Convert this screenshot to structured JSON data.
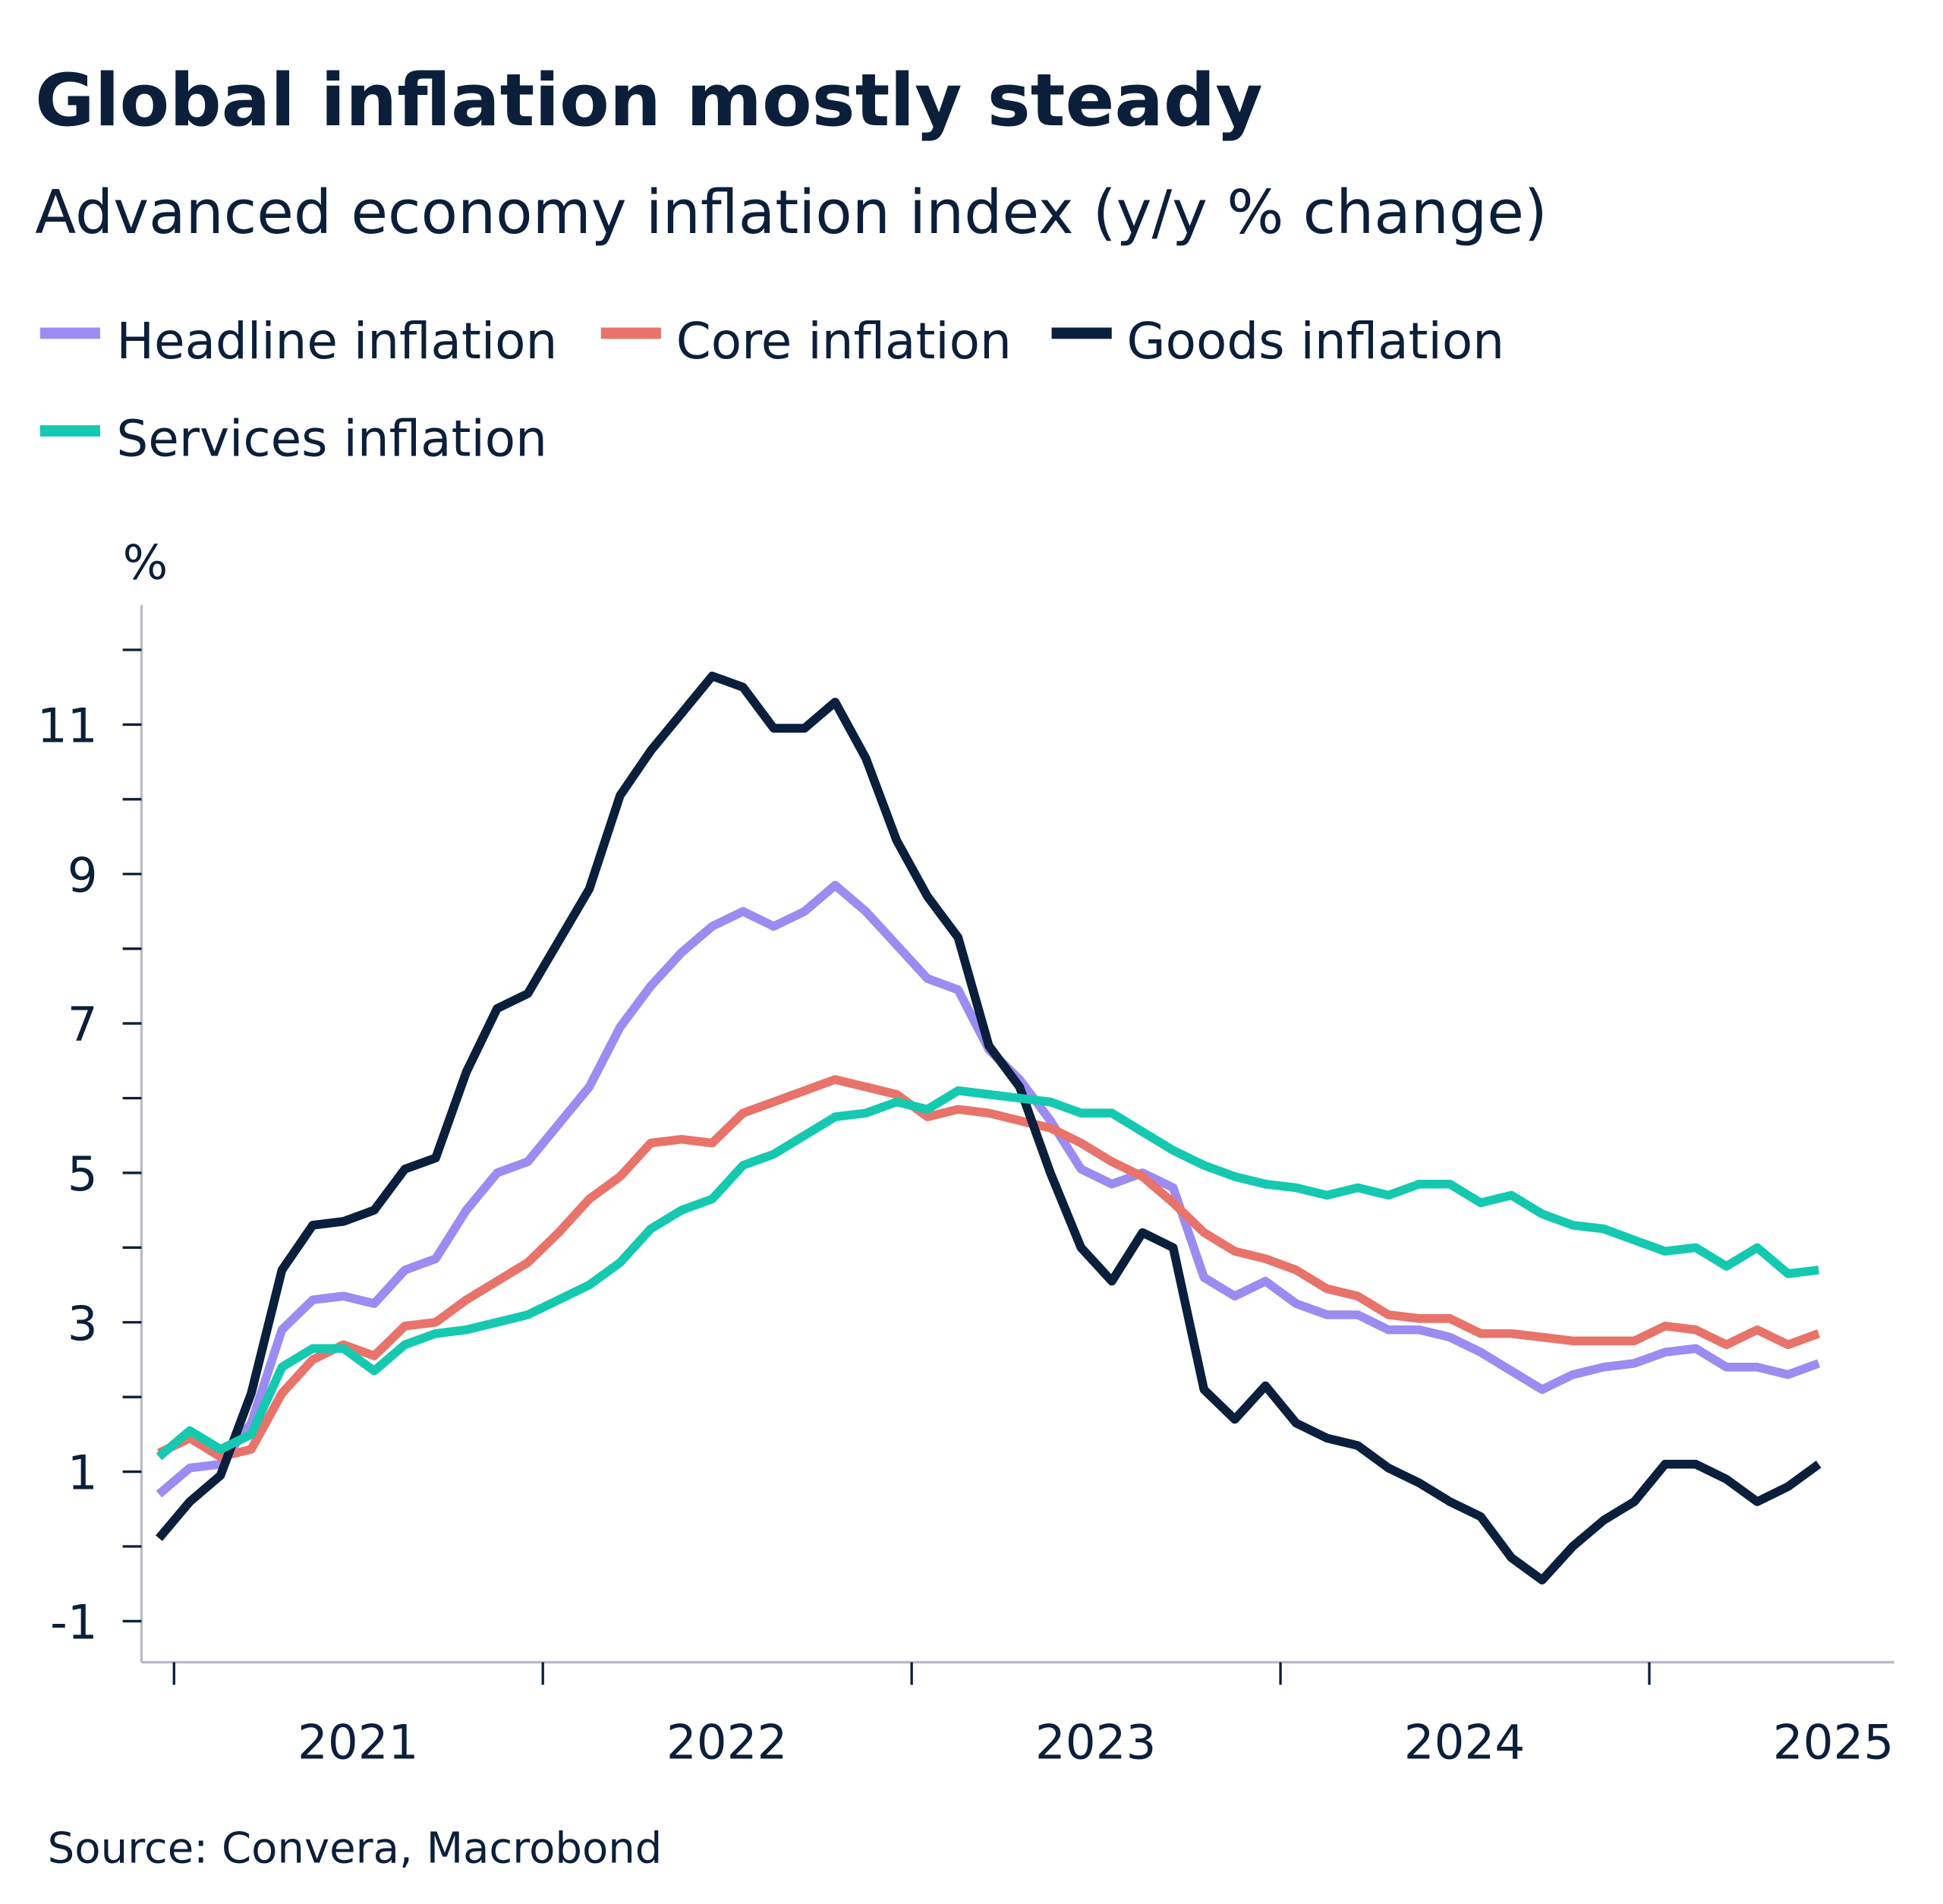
{
  "chart_data": {
    "type": "line",
    "title": "Global inflation mostly steady",
    "subtitle": "Advanced economy inflation index (y/y % change)",
    "ylabel": "%",
    "xlabel": "",
    "ylim": [
      -1.55,
      12.6
    ],
    "yticks": [
      -1,
      0,
      1,
      2,
      3,
      4,
      5,
      6,
      7,
      8,
      9,
      10,
      11,
      12
    ],
    "ytick_labels": [
      "-1",
      "1",
      "3",
      "5",
      "7",
      "9",
      "11"
    ],
    "ytick_label_values": [
      -1,
      1,
      3,
      5,
      7,
      9,
      11
    ],
    "xtick_labels": [
      "2021",
      "2022",
      "2023",
      "2024",
      "2025"
    ],
    "grid": false,
    "legend_position": "top-left",
    "source": "Source: Convera, Macrobond",
    "x": [
      "2020-12",
      "2021-01",
      "2021-02",
      "2021-03",
      "2021-04",
      "2021-05",
      "2021-06",
      "2021-07",
      "2021-08",
      "2021-09",
      "2021-10",
      "2021-11",
      "2021-12",
      "2022-01",
      "2022-02",
      "2022-03",
      "2022-04",
      "2022-05",
      "2022-06",
      "2022-07",
      "2022-08",
      "2022-09",
      "2022-10",
      "2022-11",
      "2022-12",
      "2023-01",
      "2023-02",
      "2023-03",
      "2023-04",
      "2023-05",
      "2023-06",
      "2023-07",
      "2023-08",
      "2023-09",
      "2023-10",
      "2023-11",
      "2023-12",
      "2024-01",
      "2024-02",
      "2024-03",
      "2024-04",
      "2024-05",
      "2024-06",
      "2024-07",
      "2024-08",
      "2024-09",
      "2024-10",
      "2024-11",
      "2024-12",
      "2025-01",
      "2025-02",
      "2025-03",
      "2025-04",
      "2025-05",
      "2025-06"
    ],
    "series": [
      {
        "name": "Headline inflation",
        "color": "#9b8cf2",
        "values": [
          0.7,
          1.05,
          1.1,
          1.65,
          2.9,
          3.3,
          3.35,
          3.25,
          3.7,
          3.85,
          4.5,
          5.0,
          5.15,
          5.65,
          6.15,
          6.95,
          7.5,
          7.95,
          8.3,
          8.5,
          8.3,
          8.5,
          8.85,
          8.5,
          8.05,
          7.6,
          7.45,
          6.65,
          6.25,
          5.7,
          5.05,
          4.85,
          5.0,
          4.8,
          3.6,
          3.35,
          3.55,
          3.25,
          3.1,
          3.1,
          2.9,
          2.9,
          2.8,
          2.6,
          2.35,
          2.1,
          2.3,
          2.4,
          2.45,
          2.6,
          2.65,
          2.4,
          2.4,
          2.3,
          2.45
        ]
      },
      {
        "name": "Core inflation",
        "color": "#e8736a",
        "values": [
          1.25,
          1.45,
          1.2,
          1.3,
          2.05,
          2.5,
          2.7,
          2.55,
          2.95,
          3.0,
          3.3,
          3.55,
          3.8,
          4.2,
          4.65,
          4.95,
          5.4,
          5.45,
          5.4,
          5.8,
          5.95,
          6.1,
          6.25,
          6.15,
          6.05,
          5.75,
          5.85,
          5.8,
          5.7,
          5.6,
          5.4,
          5.15,
          4.95,
          4.6,
          4.2,
          3.95,
          3.85,
          3.7,
          3.45,
          3.35,
          3.1,
          3.05,
          3.05,
          2.85,
          2.85,
          2.8,
          2.75,
          2.75,
          2.75,
          2.95,
          2.9,
          2.7,
          2.9,
          2.7,
          2.85
        ]
      },
      {
        "name": "Goods inflation",
        "color": "#0a1f3c",
        "values": [
          0.11,
          0.6,
          0.95,
          2.05,
          3.7,
          4.3,
          4.35,
          4.5,
          5.05,
          5.2,
          6.35,
          7.2,
          7.4,
          8.1,
          8.8,
          10.05,
          10.65,
          11.15,
          11.65,
          11.5,
          10.95,
          10.95,
          11.3,
          10.55,
          9.45,
          8.7,
          8.15,
          6.7,
          6.15,
          5.0,
          4.0,
          3.55,
          4.2,
          4.0,
          2.1,
          1.7,
          2.15,
          1.65,
          1.45,
          1.35,
          1.05,
          0.85,
          0.6,
          0.4,
          -0.15,
          -0.45,
          0.0,
          0.35,
          0.6,
          1.1,
          1.1,
          0.9,
          0.6,
          0.8,
          1.1
        ]
      },
      {
        "name": "Services inflation",
        "color": "#14c9b0",
        "values": [
          1.2,
          1.55,
          1.3,
          1.5,
          2.4,
          2.65,
          2.65,
          2.35,
          2.7,
          2.85,
          2.9,
          3.0,
          3.1,
          3.3,
          3.5,
          3.8,
          4.25,
          4.5,
          4.65,
          5.1,
          5.25,
          5.5,
          5.75,
          5.8,
          5.95,
          5.85,
          6.1,
          6.05,
          6.0,
          5.95,
          5.8,
          5.8,
          5.55,
          5.3,
          5.1,
          4.95,
          4.85,
          4.8,
          4.7,
          4.8,
          4.7,
          4.85,
          4.85,
          4.6,
          4.7,
          4.45,
          4.3,
          4.25,
          4.1,
          3.95,
          4.0,
          3.75,
          4.0,
          3.65,
          3.7
        ]
      }
    ]
  }
}
